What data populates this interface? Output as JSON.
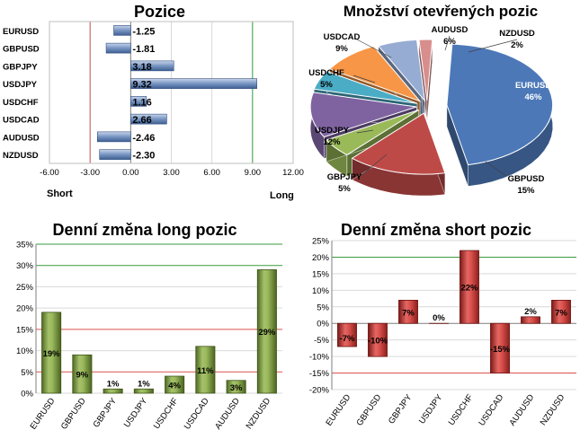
{
  "chart_data": [
    {
      "type": "bar",
      "orientation": "horizontal",
      "title": "Pozice",
      "categories": [
        "EURUSD",
        "GBPUSD",
        "GBPJPY",
        "USDJPY",
        "USDCHF",
        "USDCAD",
        "AUDUSD",
        "NZDUSD"
      ],
      "values": [
        -1.25,
        -1.81,
        3.18,
        9.32,
        1.16,
        2.66,
        -2.46,
        -2.3
      ],
      "value_labels": [
        "-1.25",
        "-1.81",
        "3.18",
        "9.32",
        "1.16",
        "2.66",
        "-2.46",
        "-2.30"
      ],
      "xlim": [
        -6,
        12
      ],
      "xticks": [
        "-6.00",
        "-3.00",
        "0.00",
        "3.00",
        "6.00",
        "9.00",
        "12.00"
      ],
      "left_label": "Short",
      "right_label": "Long",
      "color": "#4f74ac",
      "grid": true
    },
    {
      "type": "pie",
      "title": "Množství otevřených pozic",
      "categories": [
        "EURUSD",
        "GBPUSD",
        "GBPJPY",
        "USDJPY",
        "USDCHF",
        "USDCAD",
        "AUDUSD",
        "NZDUSD"
      ],
      "values": [
        46,
        15,
        5,
        12,
        5,
        9,
        6,
        2
      ],
      "value_labels": [
        "46%",
        "15%",
        "5%",
        "12%",
        "5%",
        "9%",
        "6%",
        "2%"
      ],
      "colors": [
        "#4c78b8",
        "#be4a48",
        "#9aba59",
        "#7f63a1",
        "#4bacc6",
        "#f79646",
        "#96acd3",
        "#d88e8c"
      ]
    },
    {
      "type": "bar",
      "title": "Denní změna long pozic",
      "categories": [
        "EURUSD",
        "GBPUSD",
        "GBPJPY",
        "USDJPY",
        "USDCHF",
        "USDCAD",
        "AUDUSD",
        "NZDUSD"
      ],
      "values": [
        19,
        9,
        1,
        1,
        4,
        11,
        3,
        29
      ],
      "value_labels": [
        "19%",
        "9%",
        "1%",
        "1%",
        "4%",
        "11%",
        "3%",
        "29%"
      ],
      "ylim": [
        0,
        35
      ],
      "yticks": [
        "0%",
        "5%",
        "10%",
        "15%",
        "20%",
        "25%",
        "30%",
        "35%"
      ],
      "color": "#6e8d35",
      "grid": true
    },
    {
      "type": "bar",
      "title": "Denní změna short pozic",
      "categories": [
        "EURUSD",
        "GBPUSD",
        "GBPJPY",
        "USDJPY",
        "USDCHF",
        "USDCAD",
        "AUDUSD",
        "NZDUSD"
      ],
      "values": [
        -7,
        -10,
        7,
        0,
        22,
        -15,
        2,
        7
      ],
      "value_labels": [
        "-7%",
        "-10%",
        "7%",
        "0%",
        "22%",
        "-15%",
        "2%",
        "7%"
      ],
      "ylim": [
        -20,
        25
      ],
      "yticks": [
        "-20%",
        "-15%",
        "-10%",
        "-5%",
        "0%",
        "5%",
        "10%",
        "15%",
        "20%",
        "25%"
      ],
      "color": "#c9302c",
      "grid": true
    }
  ]
}
